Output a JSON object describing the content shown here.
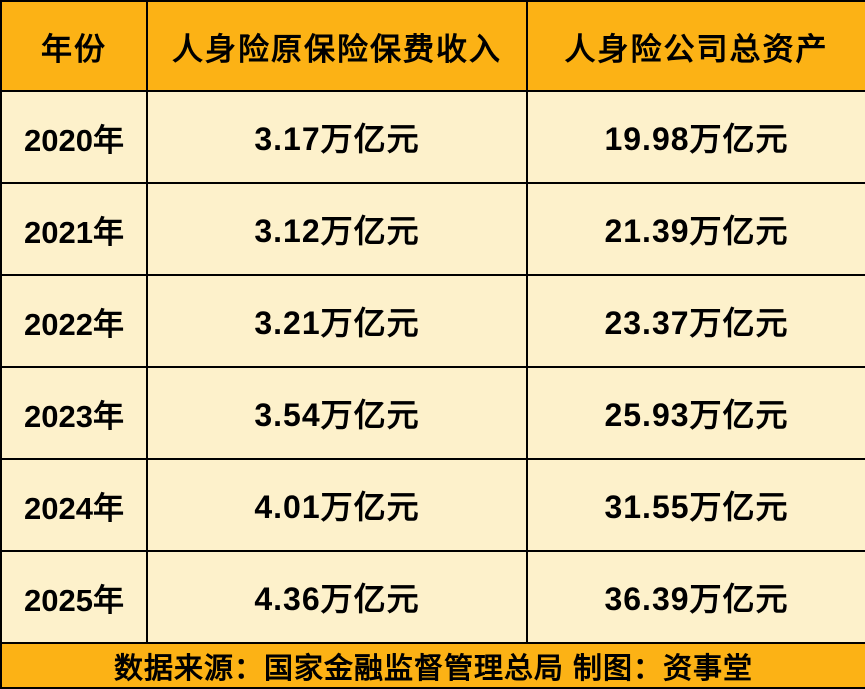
{
  "table": {
    "columns": [
      "年份",
      "人身险原保险保费收入",
      "人身险公司总资产"
    ],
    "rows": [
      [
        "2020年",
        "3.17万亿元",
        "19.98万亿元"
      ],
      [
        "2021年",
        "3.12万亿元",
        "21.39万亿元"
      ],
      [
        "2022年",
        "3.21万亿元",
        "23.37万亿元"
      ],
      [
        "2023年",
        "3.54万亿元",
        "25.93万亿元"
      ],
      [
        "2024年",
        "4.01万亿元",
        "31.55万亿元"
      ],
      [
        "2025年",
        "4.36万亿元",
        "36.39万亿元"
      ]
    ],
    "footer": "数据来源：国家金融监督管理总局 制图：资事堂"
  },
  "chart_data": {
    "type": "table",
    "title": "",
    "columns": [
      "年份",
      "人身险原保险保费收入",
      "人身险公司总资产"
    ],
    "rows": [
      [
        "2020年",
        "3.17万亿元",
        "19.98万亿元"
      ],
      [
        "2021年",
        "3.12万亿元",
        "21.39万亿元"
      ],
      [
        "2022年",
        "3.21万亿元",
        "23.37万亿元"
      ],
      [
        "2023年",
        "3.54万亿元",
        "25.93万亿元"
      ],
      [
        "2024年",
        "4.01万亿元",
        "31.55万亿元"
      ],
      [
        "2025年",
        "4.36万亿元",
        "36.39万亿元"
      ]
    ],
    "numeric": {
      "years": [
        2020,
        2021,
        2022,
        2023,
        2024,
        2025
      ],
      "premium_income_trillion_yuan": [
        3.17,
        3.12,
        3.21,
        3.54,
        4.01,
        4.36
      ],
      "total_assets_trillion_yuan": [
        19.98,
        21.39,
        23.37,
        25.93,
        31.55,
        36.39
      ]
    },
    "source_note": "数据来源：国家金融监督管理总局 制图：资事堂"
  },
  "colors": {
    "header_bg": "#FCB215",
    "cell_bg": "#FDF1CB",
    "footer_bg": "#FCB215",
    "border": "#000000",
    "text": "#000000"
  }
}
